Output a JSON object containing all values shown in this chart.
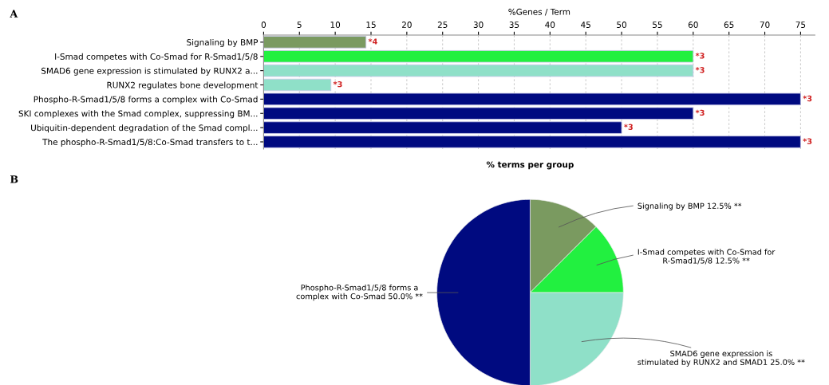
{
  "chart_data": [
    {
      "type": "bar",
      "orientation": "horizontal",
      "xlabel": "%Genes / Term",
      "annotations": [
        "A",
        {
          "text": "*4",
          "x": 14.3,
          "y": "Signaling by BMP"
        },
        {
          "text": "*3",
          "x": 60,
          "y": "I-Smad competes with Co-Smad for R-Smad1/5/8"
        },
        {
          "text": "*3",
          "x": 60,
          "y": "SMAD6 gene expression is stimulated by RUNX2 a..."
        },
        {
          "text": "*3",
          "x": 9.4,
          "y": "RUNX2 regulates bone development"
        },
        {
          "text": "*3",
          "x": 75,
          "y": "Phospho-R-Smad1/5/8 forms a complex with Co-Smad"
        },
        {
          "text": "*3",
          "x": 60,
          "y": "SKI complexes with the Smad complex, suppressing BM..."
        },
        {
          "text": "*3",
          "x": 50,
          "y": "Ubiquitin-dependent degradation of the Smad compl..."
        },
        {
          "text": "*3",
          "x": 75,
          "y": "The phospho-R-Smad1/5/8:Co-Smad transfers to t..."
        }
      ],
      "categories": [
        "Signaling by BMP",
        "I-Smad competes with Co-Smad for R-Smad1/5/8",
        "SMAD6 gene expression is stimulated by RUNX2 a...",
        "RUNX2 regulates bone development",
        "Phospho-R-Smad1/5/8 forms a complex with Co-Smad",
        "SKI complexes with the Smad complex, suppressing BM...",
        "Ubiquitin-dependent degradation of the Smad compl...",
        "The phospho-R-Smad1/5/8:Co-Smad transfers to t..."
      ],
      "values": [
        14.3,
        60,
        60,
        9.4,
        75,
        60,
        50,
        75
      ],
      "colors": [
        "#7a9a60",
        "#22f040",
        "#8fe0c8",
        "#8fe0c8",
        "#000a80",
        "#000a80",
        "#000a80",
        "#000a80"
      ],
      "xlim": [
        0,
        77
      ],
      "xticks": [
        0,
        5,
        10,
        15,
        20,
        25,
        30,
        35,
        40,
        45,
        50,
        55,
        60,
        65,
        70,
        75
      ],
      "grid": "x"
    },
    {
      "type": "pie",
      "title": "% terms per group",
      "annotations": [
        "B"
      ],
      "categories": [
        "Signaling by BMP",
        "I-Smad competes with Co-Smad for\nR-Smad1/5/8",
        "SMAD6 gene expression is\nstimulated by RUNX2 and SMAD1",
        "Phospho-R-Smad1/5/8 forms a\ncomplex with Co-Smad"
      ],
      "values": [
        12.5,
        12.5,
        25,
        50
      ],
      "colors": [
        "#7a9a60",
        "#22f040",
        "#8fe0c8",
        "#000a80"
      ],
      "value_labels": [
        "12.5% **",
        "12.5% **",
        "25.0% **",
        "50.0% **"
      ]
    }
  ]
}
